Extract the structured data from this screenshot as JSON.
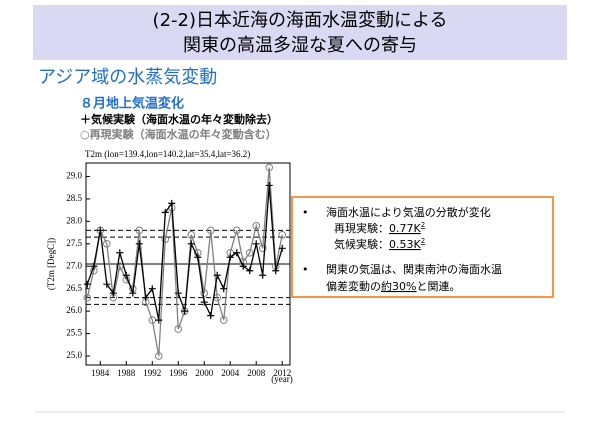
{
  "slide": {
    "title_lines": [
      "(2-2)日本近海の海面水温変動による",
      "関東の高温多湿な夏への寄与"
    ],
    "section": "アジア域の水蒸気変動"
  },
  "chart_data": {
    "type": "line",
    "title": "８月地上気温変化",
    "subtitle": "T2m (lon=139.4,lon=140.2,lat=35.4,lat=36.2)",
    "xlabel": "(year)",
    "ylabel": "(T2m [DegC])",
    "x": [
      1982,
      1983,
      1984,
      1985,
      1986,
      1987,
      1988,
      1989,
      1990,
      1991,
      1992,
      1993,
      1994,
      1995,
      1996,
      1997,
      1998,
      1999,
      2000,
      2001,
      2002,
      2003,
      2004,
      2005,
      2006,
      2007,
      2008,
      2009,
      2010,
      2011,
      2012
    ],
    "series": [
      {
        "name": "＋気候実験（海面水温の年々変動除去）",
        "color": "#000000",
        "marker": "plus",
        "values": [
          26.6,
          27.0,
          27.8,
          26.6,
          26.4,
          27.3,
          26.8,
          26.4,
          27.5,
          26.3,
          26.5,
          25.8,
          28.2,
          28.4,
          26.4,
          26.0,
          27.5,
          27.2,
          26.2,
          25.9,
          26.8,
          26.5,
          27.2,
          27.3,
          27.0,
          26.9,
          27.5,
          26.8,
          28.8,
          26.9,
          27.4
        ]
      },
      {
        "name": "○再現実験（海面水温の年々変動含む）",
        "color": "#808080",
        "marker": "circle",
        "values": [
          26.3,
          26.9,
          27.8,
          27.5,
          26.3,
          27.0,
          26.7,
          26.5,
          27.8,
          26.2,
          25.8,
          25.0,
          27.6,
          28.3,
          25.6,
          26.0,
          27.7,
          27.3,
          26.4,
          27.8,
          26.3,
          25.8,
          27.3,
          27.8,
          27.1,
          27.3,
          27.9,
          27.4,
          29.2,
          27.0,
          27.7
        ]
      }
    ],
    "hlines": [
      {
        "value": 27.05,
        "style": "solid"
      },
      {
        "value": 27.8,
        "style": "dashed"
      },
      {
        "value": 27.65,
        "style": "dashed"
      },
      {
        "value": 26.3,
        "style": "dashed"
      },
      {
        "value": 26.15,
        "style": "dashed"
      }
    ],
    "xlim": [
      1981.8,
      2013.2
    ],
    "ylim": [
      24.8,
      29.3
    ],
    "xticks": [
      1984,
      1988,
      1992,
      1996,
      2000,
      2004,
      2008,
      2012
    ],
    "yticks": [
      {
        "value": 25,
        "label": "25.0"
      },
      25.5,
      {
        "value": 26,
        "label": "26.0"
      },
      26.5,
      {
        "value": 27,
        "label": "27.0"
      },
      27.5,
      {
        "value": 28,
        "label": "28.0"
      },
      28.5,
      {
        "value": 29,
        "label": "29.0"
      }
    ]
  },
  "notes": {
    "bullet1": "海面水温により気温の分散が変化",
    "rows": [
      {
        "label": "再現実験：",
        "value": "0.77K",
        "sup": "2"
      },
      {
        "label": "気候実験：",
        "value": "0.53K",
        "sup": "2"
      }
    ],
    "bullet2_line1": "関東の気温は、関東南沖の海面水温",
    "bullet2_pre": "偏差変動の",
    "bullet2_u": "約30%",
    "bullet2_post": "と関連。",
    "bullet_mark": "•"
  }
}
